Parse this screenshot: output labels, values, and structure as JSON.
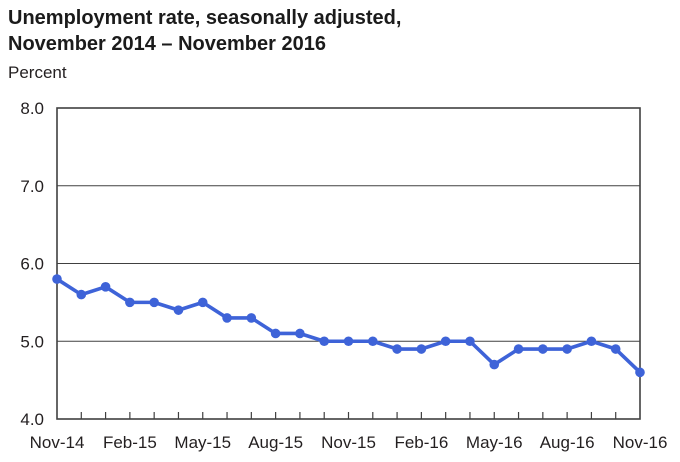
{
  "chart_data": {
    "type": "line",
    "title": "Unemployment rate, seasonally adjusted, November 2014 – November 2016",
    "title_lines": [
      "Unemployment rate, seasonally adjusted,",
      "November 2014 – November 2016"
    ],
    "ylabel": "Percent",
    "xlabel": "",
    "x": [
      "Nov-14",
      "Dec-14",
      "Jan-15",
      "Feb-15",
      "Mar-15",
      "Apr-15",
      "May-15",
      "Jun-15",
      "Jul-15",
      "Aug-15",
      "Sep-15",
      "Oct-15",
      "Nov-15",
      "Dec-15",
      "Jan-16",
      "Feb-16",
      "Mar-16",
      "Apr-16",
      "May-16",
      "Jun-16",
      "Jul-16",
      "Aug-16",
      "Sep-16",
      "Oct-16",
      "Nov-16"
    ],
    "values": [
      5.8,
      5.6,
      5.7,
      5.5,
      5.5,
      5.4,
      5.5,
      5.3,
      5.3,
      5.1,
      5.1,
      5.0,
      5.0,
      5.0,
      4.9,
      4.9,
      5.0,
      5.0,
      4.7,
      4.9,
      4.9,
      4.9,
      5.0,
      4.9,
      4.6
    ],
    "x_tick_label_every": 3,
    "x_tick_labels_shown": [
      "Nov-14",
      "Feb-15",
      "May-15",
      "Aug-15",
      "Nov-15",
      "Feb-16",
      "May-16",
      "Aug-16",
      "Nov-16"
    ],
    "y_ticks": [
      8.0,
      7.0,
      6.0,
      5.0,
      4.0
    ],
    "y_gridlines": [
      7.0,
      6.0,
      5.0
    ],
    "ylim": [
      4.0,
      8.0
    ],
    "grid": "horizontal",
    "legend": "none",
    "line_color": "#3E63D8",
    "marker": "circle",
    "marker_radius": 4.8
  }
}
